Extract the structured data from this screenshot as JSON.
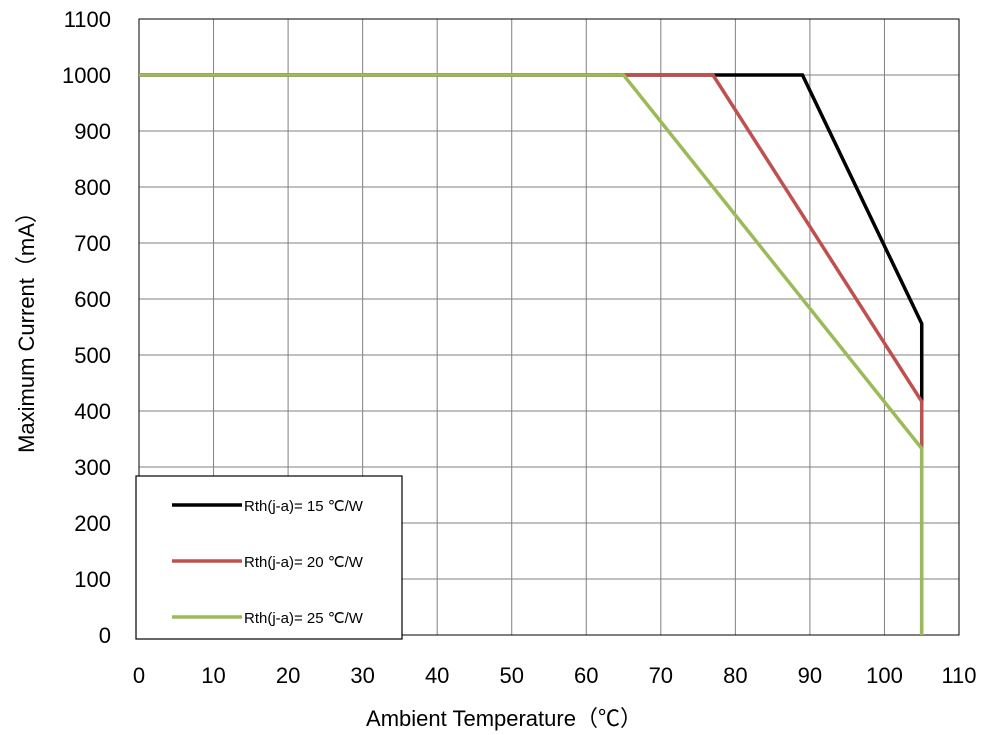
{
  "chart_data": {
    "type": "line",
    "title": "",
    "xlabel": "Ambient Temperature（℃）",
    "ylabel": "Maximum Current（mA）",
    "xlim": [
      0,
      110
    ],
    "ylim": [
      0,
      1100
    ],
    "xticks": [
      "0",
      "10",
      "20",
      "30",
      "40",
      "50",
      "60",
      "70",
      "80",
      "90",
      "100",
      "110"
    ],
    "yticks": [
      "0",
      "100",
      "200",
      "300",
      "400",
      "500",
      "600",
      "700",
      "800",
      "900",
      "1000",
      "1100"
    ],
    "grid": true,
    "legend": "bottom-left",
    "series": [
      {
        "name": "Rth(j-a)= 15 ℃/W",
        "color": "#000000",
        "x": [
          0,
          89,
          105,
          105
        ],
        "y": [
          1000,
          1000,
          556,
          0
        ]
      },
      {
        "name": "Rth(j-a)= 20 ℃/W",
        "color": "#c0504d",
        "x": [
          0,
          77,
          105,
          105
        ],
        "y": [
          1000,
          1000,
          417,
          0
        ]
      },
      {
        "name": "Rth(j-a)= 25 ℃/W",
        "color": "#9bbb59",
        "x": [
          0,
          65,
          105,
          105
        ],
        "y": [
          1000,
          1000,
          333,
          0
        ]
      }
    ]
  }
}
